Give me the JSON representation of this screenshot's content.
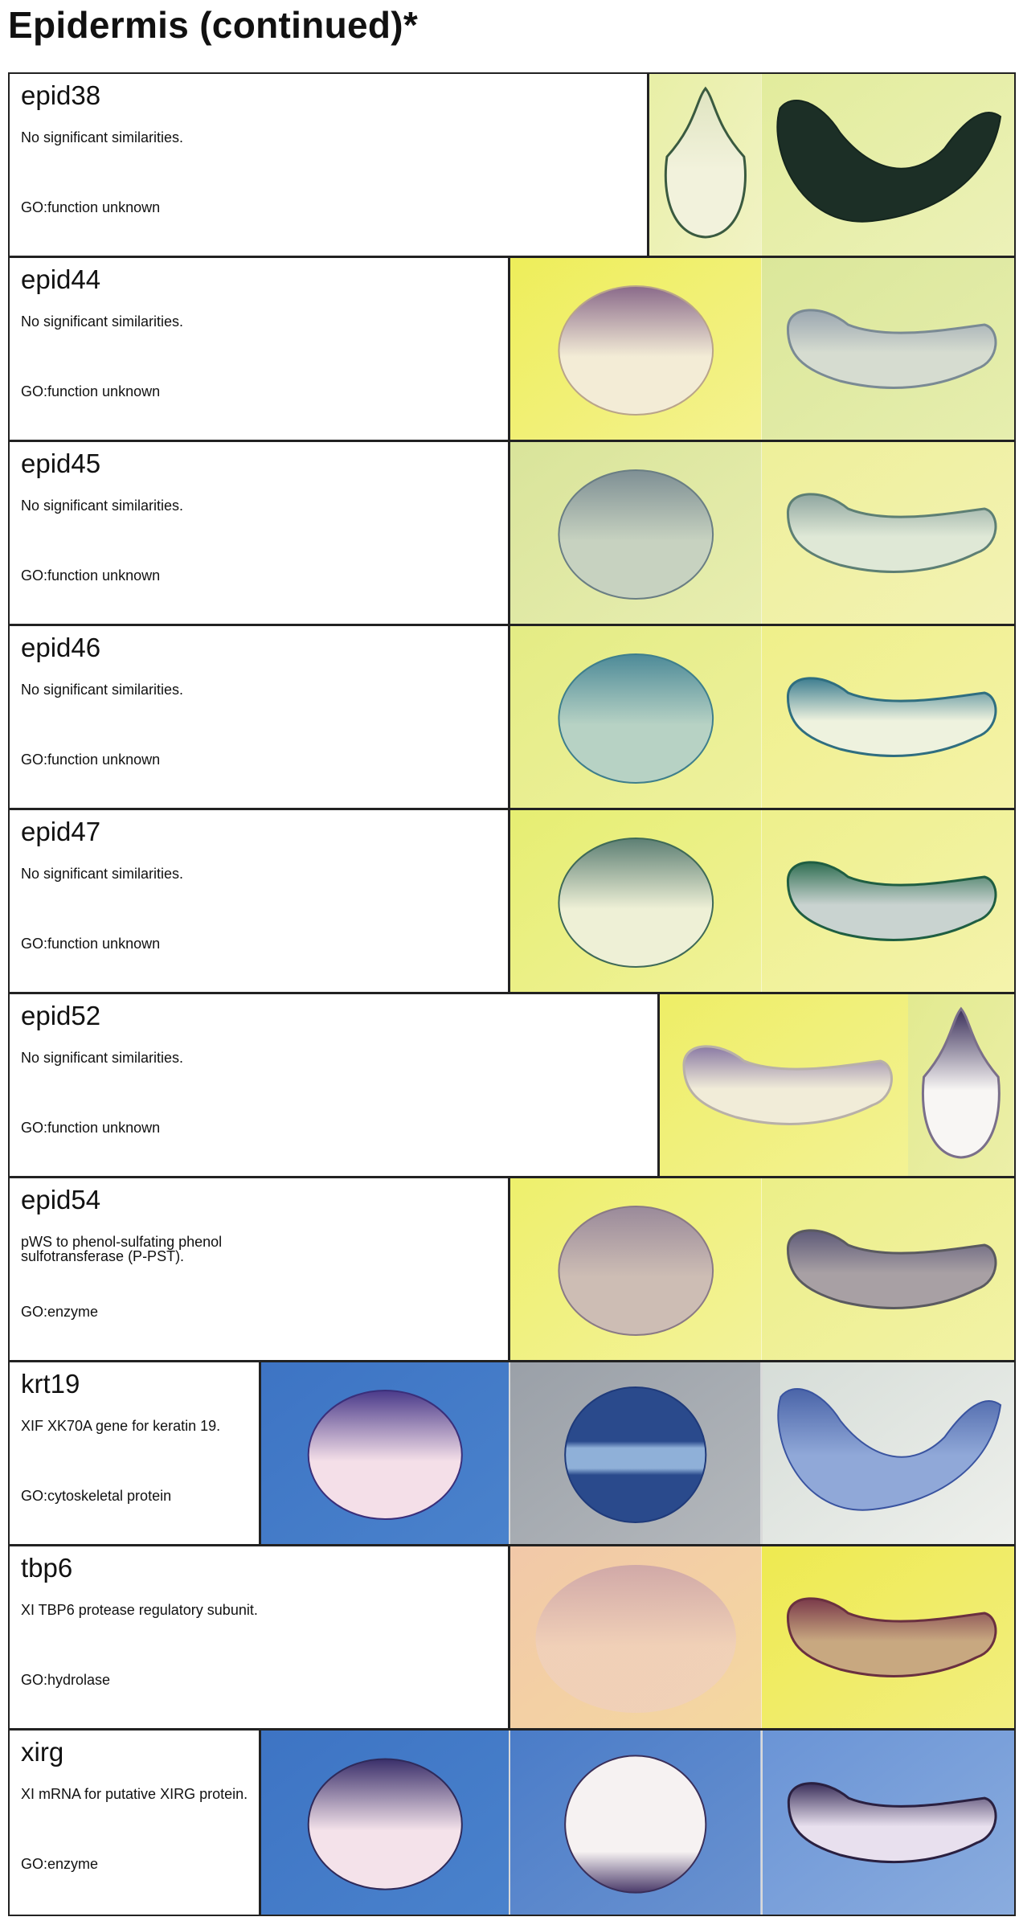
{
  "title": "Epidermis (continued)*",
  "rows": [
    {
      "name": "epid38",
      "desc": "No significant similarities.",
      "go": "GO:function unknown",
      "panels": [
        {
          "bg": "#e8efa6",
          "bg2": "#f1f3c4",
          "embryos": [
            {
              "shape": "pear",
              "fill": "#f2f2dc",
              "stain": "#dfe4c0",
              "edge": "#3a5a40"
            }
          ]
        },
        {
          "bg": "#e2ec9c",
          "bg2": "#ecf1b8",
          "embryos": [
            {
              "shape": "ucurve",
              "fill": "#1c2f26",
              "stain": "#15261e",
              "edge": "#15261e"
            }
          ]
        }
      ]
    },
    {
      "name": "epid44",
      "desc": "No significant similarities.",
      "go": "GO:function unknown",
      "panels": [
        {
          "bg": "#eeee5a",
          "bg2": "#f4f290",
          "embryos": [
            {
              "shape": "round",
              "fill": "#f3ecd6",
              "stain": "#8a6a8a",
              "edge": "#b9a48a"
            }
          ]
        },
        {
          "bg": "#dbe79a",
          "bg2": "#e6eeae",
          "embryos": [
            {
              "shape": "tailbud",
              "fill": "#d6dcd0",
              "stain": "#9aa6b0",
              "edge": "#7a8a94"
            }
          ]
        }
      ]
    },
    {
      "name": "epid45",
      "desc": "No significant similarities.",
      "go": "GO:function unknown",
      "panels": [
        {
          "bg": "#d9e49a",
          "bg2": "#e8eeb0",
          "embryos": [
            {
              "shape": "round",
              "fill": "#c7d2c0",
              "stain": "#7e8f94",
              "edge": "#6a7e84"
            }
          ]
        },
        {
          "bg": "#eef09a",
          "bg2": "#f3f2b4",
          "embryos": [
            {
              "shape": "tailbud",
              "fill": "#dfe8d6",
              "stain": "#8fa6a0",
              "edge": "#5d7f74"
            }
          ]
        }
      ]
    },
    {
      "name": "epid46",
      "desc": "No significant similarities.",
      "go": "GO:function unknown",
      "panels": [
        {
          "bg": "#e4ec84",
          "bg2": "#eef19e",
          "embryos": [
            {
              "shape": "round",
              "fill": "#b7d2c4",
              "stain": "#4d8a98",
              "edge": "#3f7f8c"
            }
          ]
        },
        {
          "bg": "#eff08a",
          "bg2": "#f4f2a8",
          "embryos": [
            {
              "shape": "tailbud",
              "fill": "#eef2de",
              "stain": "#3e7e90",
              "edge": "#2f6e80"
            }
          ]
        }
      ]
    },
    {
      "name": "epid47",
      "desc": "No significant similarities.",
      "go": "GO:function unknown",
      "panels": [
        {
          "bg": "#e6ee72",
          "bg2": "#f0f29a",
          "embryos": [
            {
              "shape": "round",
              "fill": "#eef0d6",
              "stain": "#5d7f74",
              "edge": "#3f6a58"
            }
          ]
        },
        {
          "bg": "#eef08c",
          "bg2": "#f4f3ac",
          "embryos": [
            {
              "shape": "tailbud",
              "fill": "#c9d3d0",
              "stain": "#2f6e52",
              "edge": "#1f5e42"
            }
          ]
        }
      ]
    },
    {
      "name": "epid52",
      "desc": "No significant similarities.",
      "go": "GO:function unknown",
      "panels": [
        {
          "bg": "#eeee66",
          "bg2": "#f3f294",
          "embryos": [
            {
              "shape": "tailbud",
              "fill": "#f1ecd8",
              "stain": "#8a7aa4",
              "edge": "#b8b0a8"
            }
          ]
        },
        {
          "bg": "#e2ea90",
          "bg2": "#ecefa8",
          "embryos": [
            {
              "shape": "pear",
              "fill": "#f8f6f4",
              "stain": "#3a2f5a",
              "edge": "#7a6f8a"
            }
          ]
        }
      ]
    },
    {
      "name": "epid54",
      "desc": "pWS to phenol-sulfating phenol sulfotransferase (P-PST).",
      "go": "GO:enzyme",
      "panels": [
        {
          "bg": "#eef06c",
          "bg2": "#f3f29a",
          "embryos": [
            {
              "shape": "round",
              "fill": "#cdbdb4",
              "stain": "#9a8a9a",
              "edge": "#8a7a86"
            }
          ]
        },
        {
          "bg": "#ecef88",
          "bg2": "#f2f2a6",
          "embryos": [
            {
              "shape": "tailbud",
              "fill": "#a8a0a4",
              "stain": "#5e5a78",
              "edge": "#5a5a60"
            }
          ]
        }
      ]
    },
    {
      "name": "krt19",
      "desc": "XIF XK70A gene for keratin 19.",
      "go": "GO:cytoskeletal protein",
      "panels": [
        {
          "bg": "#3d74c4",
          "bg2": "#4a82cc",
          "embryos": [
            {
              "shape": "round",
              "fill": "#f4dfe8",
              "stain": "#4a3a8a",
              "edge": "#3a2f7a"
            }
          ]
        },
        {
          "bg": "#9aa0a8",
          "bg2": "#b4b8bc",
          "embryos": [
            {
              "shape": "sphere-band",
              "fill": "#8fb0d8",
              "stain": "#2a4a8c",
              "edge": "#1f3a7a"
            }
          ]
        },
        {
          "bg": "#d6ddd8",
          "bg2": "#eef0ec",
          "embryos": [
            {
              "shape": "ucurve-light",
              "fill": "#90a8d8",
              "stain": "#4a64a8",
              "edge": "#3a54a0"
            }
          ]
        }
      ]
    },
    {
      "name": "tbp6",
      "desc": "XI TBP6 protease regulatory subunit.",
      "go": "GO:hydrolase",
      "panels": [
        {
          "bg": "#f2c8a8",
          "bg2": "#f4d8a0",
          "embryos": [
            {
              "shape": "round-faint",
              "fill": "#f0d0bc",
              "stain": "#c8a0a8",
              "edge": "#e4c0a8"
            }
          ]
        },
        {
          "bg": "#eeea50",
          "bg2": "#f2ee80",
          "embryos": [
            {
              "shape": "tailbud",
              "fill": "#c8a880",
              "stain": "#7a3a4a",
              "edge": "#6a3040"
            }
          ]
        }
      ]
    },
    {
      "name": "xirg",
      "desc": "XI mRNA for putative XIRG protein.",
      "go": "GO:enzyme",
      "panels": [
        {
          "bg": "#3d74c4",
          "bg2": "#4a82cc",
          "embryos": [
            {
              "shape": "round",
              "fill": "#f4e2ea",
              "stain": "#3a2f6a",
              "edge": "#2f2a5a"
            }
          ]
        },
        {
          "bg": "#4a7cc8",
          "bg2": "#6a92d0",
          "embryos": [
            {
              "shape": "sphere-white",
              "fill": "#f6f2f2",
              "stain": "#4a3a6a",
              "edge": "#3a2f5a"
            }
          ]
        },
        {
          "bg": "#6a94d6",
          "bg2": "#8aacde",
          "embryos": [
            {
              "shape": "tailbud",
              "fill": "#e8e0ee",
              "stain": "#3a2f5a",
              "edge": "#2a2040"
            }
          ]
        }
      ]
    }
  ]
}
